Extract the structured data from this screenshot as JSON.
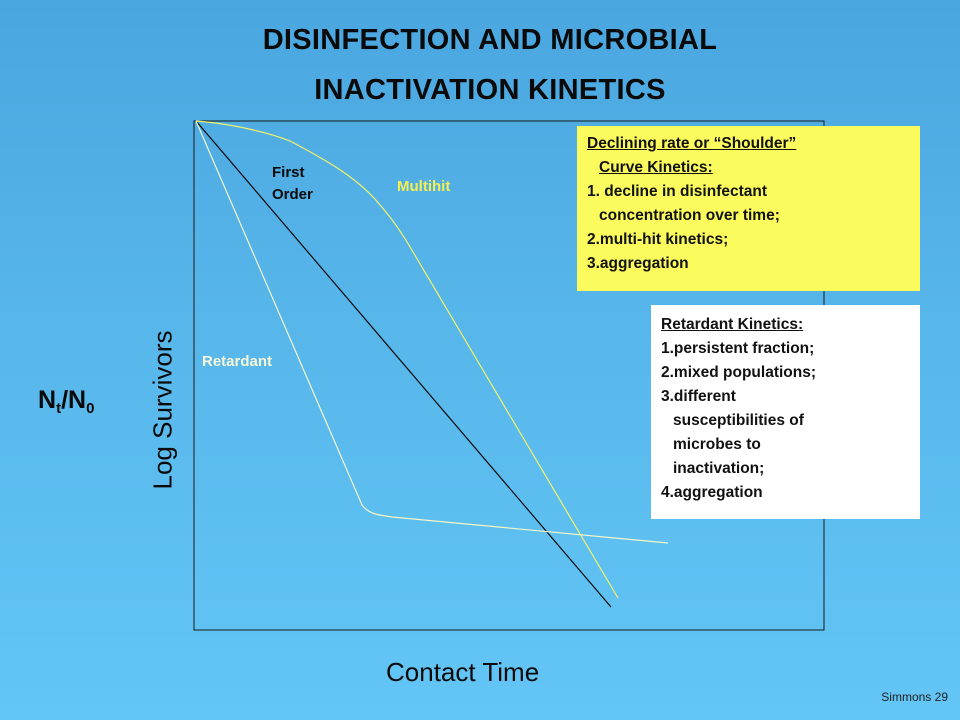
{
  "title": {
    "line1": "DISINFECTION AND MICROBIAL",
    "line2": "INACTIVATION KINETICS"
  },
  "axes": {
    "ylabel": "Log  Survivors",
    "ratio": {
      "n": "N",
      "t": "t",
      "slash": "/N",
      "zero": "0"
    },
    "xlabel": "Contact Time"
  },
  "curves": {
    "first_order": "First\nOrder",
    "first_order_line1": "First",
    "first_order_line2": "Order",
    "multihit": "Multihit",
    "retardant": "Retardant"
  },
  "colors": {
    "first_order": "#0a0a0a",
    "multihit": "#f2f26a",
    "retardant": "#f4f6c8",
    "multihit_label": "#f4f050",
    "retardant_label": "#f6f7d8"
  },
  "shoulder_box": {
    "lines": [
      "Declining rate or “Shoulder”",
      "Curve Kinetics:",
      "1. decline in disinfectant",
      "concentration over time;",
      "2.multi-hit kinetics;",
      "3.aggregation"
    ]
  },
  "retardant_box": {
    "lines": [
      "Retardant Kinetics:",
      "1.persistent fraction;",
      "2.mixed populations;",
      "3.different",
      "susceptibilities of",
      "microbes to",
      "inactivation;",
      "4.aggregation"
    ]
  },
  "footer": "Simmons 29"
}
